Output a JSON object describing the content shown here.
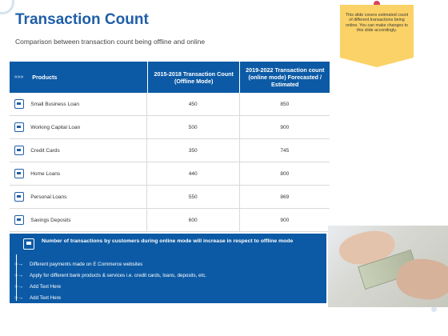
{
  "page": {
    "title": "Transaction Count",
    "subtitle": "Comparison between transaction count being offline and online"
  },
  "note": {
    "text": "This slide covers estimated count of different transactions being online. You can make changes to this slide accordingly."
  },
  "table": {
    "header_icon": "»»»",
    "headers": {
      "products": "Products",
      "offline": "2015-2018 Transaction Count (Offline Mode)",
      "online": "2019-2022 Transaction count (online mode) Forecasted / Estimated"
    },
    "rows": [
      {
        "icon": "calculator-icon",
        "product": "Small Business Loan",
        "offline": "450",
        "online": "850"
      },
      {
        "icon": "briefcase-icon",
        "product": "Working Capital Loan",
        "offline": "500",
        "online": "900"
      },
      {
        "icon": "credit-card-icon",
        "product": "Credit Cards",
        "offline": "350",
        "online": "745"
      },
      {
        "icon": "house-icon",
        "product": "Home Loans",
        "offline": "440",
        "online": "800"
      },
      {
        "icon": "calculator-icon",
        "product": "Personal Loans",
        "offline": "550",
        "online": "869"
      },
      {
        "icon": "piggy-bank-icon",
        "product": "Savings Deposits",
        "offline": "600",
        "online": "900"
      }
    ]
  },
  "panel": {
    "headline": "Number of transactions by customers during online mode will increase in respect to offline mode",
    "bullets": [
      "Different payments made on E Commerce websites",
      "Apply for different bank products & services i.e. credit cards, loans, deposits, etc.",
      "Add Text Here",
      "Add Text Here"
    ],
    "arrow": "○→"
  },
  "colors": {
    "accent": "#0c5aa5",
    "title": "#1f5ea8",
    "note": "#fbd267"
  }
}
